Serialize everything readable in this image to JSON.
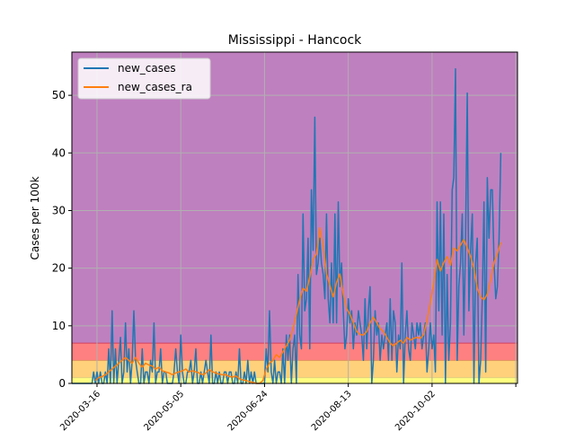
{
  "chart_data": {
    "type": "line",
    "title": "Mississippi - Hancock",
    "xlabel": "",
    "ylabel": "Cases per 100k",
    "ylim": [
      0,
      57.5
    ],
    "grid": true,
    "legend_position": "top-left",
    "x_start": "2020-03-01",
    "x_tick_labels": [
      "2020-03-16",
      "2020-05-05",
      "2020-06-24",
      "2020-08-13",
      "2020-10-02"
    ],
    "x_ticks_day_index": [
      15,
      65,
      115,
      165,
      215
    ],
    "x_extra_tick_day_index": 265,
    "y_ticks": [
      0,
      10,
      20,
      30,
      40,
      50
    ],
    "background_bands": [
      {
        "from": 0,
        "to": 1,
        "color": "#ffff80"
      },
      {
        "from": 1,
        "to": 4,
        "color": "#ffd17a"
      },
      {
        "from": 4,
        "to": 7,
        "color": "#ff8080"
      },
      {
        "from": 7,
        "to": 57.5,
        "color": "#bf80bf"
      }
    ],
    "series": [
      {
        "name": "new_cases",
        "color": "#1f77b4",
        "x_day_index": [
          0,
          1,
          2,
          3,
          4,
          5,
          6,
          7,
          8,
          9,
          10,
          11,
          12,
          13,
          14,
          15,
          16,
          17,
          18,
          19,
          20,
          21,
          22,
          23,
          24,
          25,
          26,
          27,
          28,
          29,
          30,
          31,
          32,
          33,
          34,
          35,
          36,
          37,
          38,
          39,
          40,
          41,
          42,
          43,
          44,
          45,
          46,
          47,
          48,
          49,
          50,
          51,
          52,
          53,
          54,
          55,
          56,
          57,
          58,
          59,
          60,
          61,
          62,
          63,
          64,
          65,
          66,
          67,
          68,
          69,
          70,
          71,
          72,
          73,
          74,
          75,
          76,
          77,
          78,
          79,
          80,
          81,
          82,
          83,
          84,
          85,
          86,
          87,
          88,
          89,
          90,
          91,
          92,
          93,
          94,
          95,
          96,
          97,
          98,
          99,
          100,
          101,
          102,
          103,
          104,
          105,
          106,
          107,
          108,
          109,
          110,
          111,
          112,
          113,
          114,
          115,
          116,
          117,
          118,
          119,
          120,
          121,
          122,
          123,
          124,
          125,
          126,
          127,
          128,
          129,
          130,
          131,
          132,
          133,
          134,
          135,
          136,
          137,
          138,
          139,
          140,
          141,
          142,
          143,
          144,
          145,
          146,
          147,
          148,
          149,
          150,
          151,
          152,
          153,
          154,
          155,
          156,
          157,
          158,
          159,
          160,
          161,
          162,
          163,
          164,
          165,
          166,
          167,
          168,
          169,
          170,
          171,
          172,
          173,
          174,
          175,
          176,
          177,
          178,
          179,
          180,
          181,
          182,
          183,
          184,
          185,
          186,
          187,
          188,
          189,
          190,
          191,
          192,
          193,
          194,
          195,
          196,
          197,
          198,
          199,
          200,
          201,
          202,
          203,
          204,
          205,
          206,
          207,
          208,
          209,
          210,
          211,
          212,
          213,
          214,
          215,
          216,
          217,
          218,
          219,
          220,
          221,
          222,
          223,
          224,
          225,
          226,
          227,
          228,
          229,
          230,
          231,
          232,
          233,
          234,
          235,
          236,
          237,
          238,
          239,
          240,
          241,
          242,
          243,
          244,
          245,
          246,
          247,
          248,
          249,
          250,
          251,
          252,
          253,
          254,
          255,
          256
        ],
        "values": [
          0,
          0,
          0,
          0,
          0,
          0,
          0,
          0,
          0,
          0,
          0,
          0,
          0,
          2,
          0,
          2,
          0,
          2,
          0,
          0,
          2,
          0,
          6,
          0,
          12.6,
          0,
          6,
          0,
          4,
          8,
          0,
          2,
          10.5,
          2,
          6,
          0,
          4,
          12.6,
          4,
          2,
          0,
          0,
          6,
          0,
          2,
          2,
          0,
          4,
          2,
          10.5,
          0,
          2,
          2,
          6,
          0,
          2,
          2,
          0,
          0,
          0,
          0,
          2,
          6,
          2,
          0,
          8.4,
          2,
          0,
          0,
          2,
          2,
          4,
          0,
          2,
          6,
          0,
          0,
          2,
          0,
          2,
          4,
          2,
          0,
          8.4,
          0,
          0,
          2,
          0,
          2,
          0,
          0,
          2,
          2,
          0,
          2,
          2,
          0,
          0,
          2,
          0,
          6,
          0,
          0,
          2,
          0,
          4,
          0,
          2,
          0,
          2,
          0,
          0,
          0,
          0,
          0,
          0,
          6,
          2,
          12.6,
          2,
          0,
          4,
          0,
          2,
          2,
          0,
          6,
          0,
          8.4,
          4,
          8.4,
          0,
          6,
          8.4,
          0,
          18.9,
          8.4,
          6,
          29.4,
          12.6,
          14.7,
          25.2,
          6,
          33.6,
          23.1,
          46.2,
          18.9,
          20.9,
          25.2,
          20.9,
          18.9,
          14.7,
          29.4,
          14.7,
          10.5,
          20.9,
          10.5,
          29.4,
          10.5,
          31.5,
          16.8,
          20.9,
          12.6,
          6,
          8.4,
          14.7,
          10.5,
          12.6,
          6,
          10.5,
          8.4,
          12.6,
          10.5,
          8.4,
          4,
          14.7,
          6,
          12.6,
          16.8,
          0,
          4,
          12.6,
          8.4,
          10.5,
          4,
          8.4,
          6,
          8.4,
          10.5,
          4,
          14.7,
          4,
          12.6,
          10.5,
          2,
          8.4,
          6,
          20.9,
          0,
          8.4,
          12.6,
          6,
          4,
          10.5,
          8.4,
          6,
          10.5,
          8.4,
          10.5,
          6,
          8.4,
          10.5,
          2,
          6,
          10.5,
          6,
          8.4,
          2,
          31.5,
          12.6,
          31.5,
          8.4,
          29.4,
          0,
          18.9,
          4,
          10.5,
          33.6,
          35.7,
          54.6,
          4,
          16.8,
          20.9,
          29.4,
          8.4,
          25.2,
          50.4,
          12.6,
          23.1,
          29.4,
          0,
          20.9,
          25.2,
          0,
          4,
          14.7,
          31.5,
          2,
          35.7,
          25.2,
          33.6,
          33.6,
          20.9,
          14.7,
          16.8,
          25.2,
          40
        ]
      },
      {
        "name": "new_cases_ra",
        "color": "#ff7f0e",
        "x_day_index": [
          14,
          16,
          18,
          20,
          22,
          24,
          26,
          28,
          30,
          32,
          34,
          36,
          38,
          40,
          42,
          44,
          46,
          48,
          50,
          52,
          54,
          56,
          58,
          60,
          62,
          64,
          66,
          68,
          70,
          72,
          74,
          76,
          78,
          80,
          82,
          84,
          86,
          88,
          90,
          92,
          94,
          96,
          98,
          100,
          102,
          104,
          106,
          108,
          110,
          112,
          114,
          116,
          118,
          120,
          122,
          124,
          126,
          128,
          130,
          132,
          134,
          136,
          138,
          140,
          142,
          144,
          146,
          148,
          150,
          152,
          154,
          156,
          158,
          160,
          162,
          164,
          166,
          168,
          170,
          172,
          174,
          176,
          178,
          180,
          182,
          184,
          186,
          188,
          190,
          192,
          194,
          196,
          198,
          200,
          202,
          204,
          206,
          208,
          210,
          212,
          214,
          216,
          218,
          220,
          222,
          224,
          226,
          228,
          230,
          232,
          234,
          236,
          238,
          240,
          242,
          244,
          246,
          248,
          250,
          252,
          254,
          256
        ],
        "values": [
          0.5,
          1,
          1.2,
          1.5,
          2,
          2.5,
          3,
          3.5,
          4,
          4.5,
          4,
          3.5,
          4.5,
          3.5,
          2.8,
          3.5,
          3.2,
          3,
          2.5,
          2.8,
          2.2,
          2,
          1.8,
          1.5,
          1.8,
          2,
          2.2,
          2.5,
          2,
          2.2,
          2,
          1.8,
          1.5,
          1.8,
          2.4,
          2,
          1.8,
          1.6,
          1.5,
          1.5,
          1.2,
          1.1,
          1.3,
          0.8,
          0.6,
          0.5,
          0.3,
          0.2,
          0,
          0,
          0.5,
          2.5,
          3.5,
          4,
          5,
          4.5,
          5.5,
          6.5,
          7.5,
          9.5,
          12,
          14.5,
          16.5,
          16,
          18.5,
          21.5,
          22.5,
          27,
          24,
          19,
          17,
          15,
          17.5,
          19,
          15.5,
          13,
          12,
          10.5,
          9,
          8.5,
          8.4,
          9,
          10.5,
          11.5,
          10.5,
          9.5,
          9,
          8,
          7,
          6.5,
          7,
          7.5,
          7,
          8,
          7.5,
          7.8,
          8,
          7.8,
          8.5,
          11,
          14,
          17.5,
          21.5,
          19.5,
          21,
          22,
          20.5,
          23.5,
          23,
          24,
          25,
          23.5,
          22,
          20,
          16.5,
          15,
          14.5,
          15.5,
          18,
          21,
          22.5,
          24.5
        ]
      }
    ]
  }
}
